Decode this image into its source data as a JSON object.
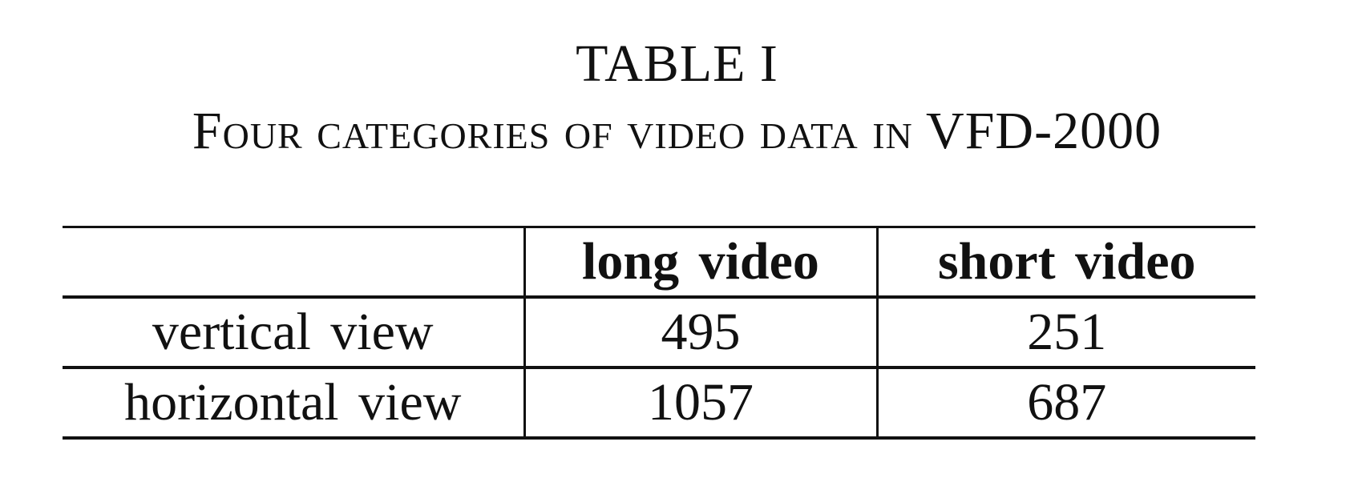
{
  "caption": {
    "label": "TABLE I",
    "title": "Four categories of video data in VFD-2000"
  },
  "table": {
    "columns": [
      "",
      "long video",
      "short video"
    ],
    "rows": [
      {
        "label": "vertical view",
        "long_video": "495",
        "short_video": "251"
      },
      {
        "label": "horizontal view",
        "long_video": "1057",
        "short_video": "687"
      }
    ]
  }
}
